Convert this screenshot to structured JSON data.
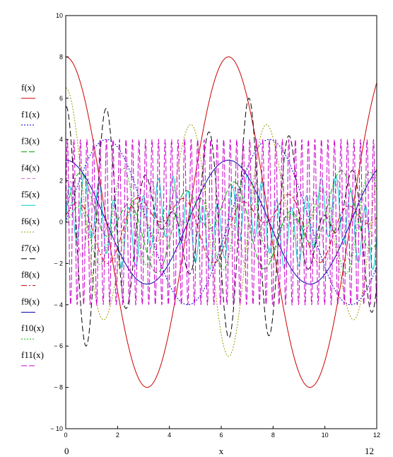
{
  "chart_data": {
    "type": "line",
    "xlabel": "x",
    "x_range_labels": [
      "0",
      "12"
    ],
    "xlim": [
      0,
      12
    ],
    "ylim": [
      -10,
      10
    ],
    "x_ticks": [
      0,
      2,
      4,
      6,
      8,
      10,
      12
    ],
    "y_ticks": [
      -10,
      -8,
      -6,
      -4,
      -2,
      0,
      2,
      4,
      6,
      8,
      10
    ],
    "legend_position": "left",
    "grid": false,
    "series": [
      {
        "name": "f(x)",
        "color": "#cc0000",
        "dash": "",
        "sample_x": [
          0,
          3.14,
          6.28,
          9.42,
          12
        ],
        "sample_y": [
          8,
          -8,
          8,
          -8,
          6.75
        ]
      },
      {
        "name": "f1(x)",
        "color": "#0000cc",
        "dash": "2,2",
        "sample_x": [
          0,
          1.57,
          4.71,
          7.85,
          11
        ],
        "sample_y": [
          0,
          4,
          -4,
          4,
          -4
        ]
      },
      {
        "name": "f3(x)",
        "color": "#00aa00",
        "dash": "8,3",
        "sample_x": [
          0,
          3,
          6,
          9,
          12
        ],
        "sample_y": [
          0,
          1.2,
          -1.5,
          0.5,
          2.7
        ]
      },
      {
        "name": "f4(x)",
        "color": "#cc66cc",
        "dash": "5,3",
        "sample_x": [
          0,
          3,
          6,
          9,
          12
        ],
        "sample_y": [
          0,
          1.9,
          0.1,
          -1.6,
          0.7
        ]
      },
      {
        "name": "f5(x)",
        "color": "#00cccc",
        "dash": "",
        "sample_x": [
          0,
          3,
          6,
          9,
          12
        ],
        "sample_y": [
          0,
          1.4,
          0.4,
          -1.1,
          0.8
        ]
      },
      {
        "name": "f6(x)",
        "color": "#999900",
        "dash": "2,2",
        "sample_x": [
          0,
          1.57,
          3.14,
          4.71,
          7.85
        ],
        "sample_y": [
          7,
          -3.5,
          -5.3,
          6.5,
          -6.5
        ]
      },
      {
        "name": "f7(x)",
        "color": "#000000",
        "dash": "8,4",
        "sample_x": [
          0.4,
          2.7,
          3.5,
          5.6,
          6.3
        ],
        "sample_y": [
          5.8,
          -5.2,
          6,
          -4.6,
          6.2
        ]
      },
      {
        "name": "f8(x)",
        "color": "#cc0000",
        "dash": "8,3,2,3",
        "sample_x": [
          0,
          3,
          6,
          9,
          12
        ],
        "sample_y": [
          0,
          1.5,
          -1.4,
          0.7,
          -2.2
        ]
      },
      {
        "name": "f9(x)",
        "color": "#0000aa",
        "dash": "",
        "sample_x": [
          0,
          3.14,
          6.28,
          9.42,
          12
        ],
        "sample_y": [
          3,
          -3,
          3,
          -3,
          2.5
        ]
      },
      {
        "name": "f10(x)",
        "color": "#00bb00",
        "dash": "2,2",
        "sample_x": [
          0,
          3,
          6,
          9,
          12
        ],
        "sample_y": [
          0,
          -1.1,
          2.9,
          -0.9,
          -2.6
        ]
      },
      {
        "name": "f11(x)",
        "color": "#cc00cc",
        "dash": "8,3",
        "sample_x": [
          0,
          3,
          6,
          9,
          12
        ],
        "sample_y": [
          4,
          -4,
          4,
          -4,
          4
        ]
      }
    ]
  }
}
